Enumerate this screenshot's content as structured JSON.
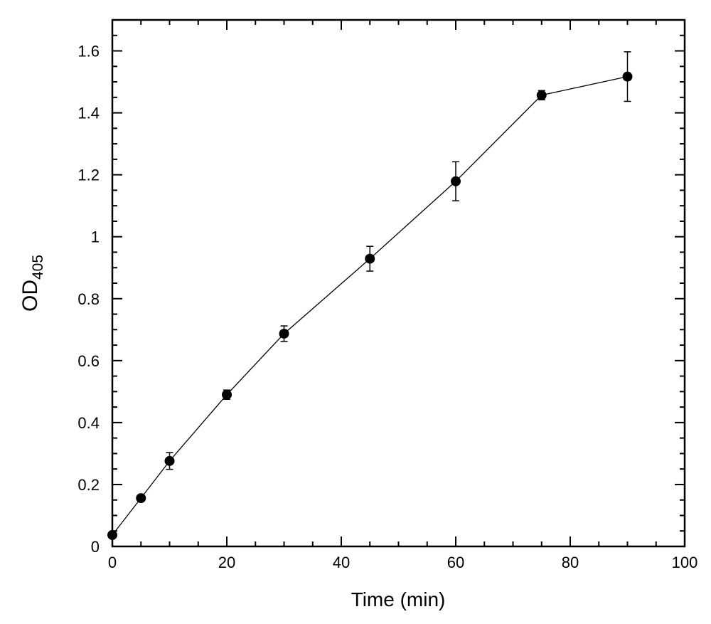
{
  "chart_data": {
    "type": "line",
    "title": "",
    "xlabel": "Time (min)",
    "ylabel_main": "OD",
    "ylabel_sub": "405",
    "xlim": [
      0,
      100
    ],
    "ylim": [
      0,
      1.7
    ],
    "xticks": [
      0,
      20,
      40,
      60,
      80,
      100
    ],
    "xtick_labels": [
      "0",
      "20",
      "40",
      "60",
      "80",
      "100"
    ],
    "yticks": [
      0,
      0.2,
      0.4,
      0.6,
      0.8,
      1,
      1.2,
      1.4,
      1.6
    ],
    "ytick_labels": [
      "0",
      "0.2",
      "0.4",
      "0.6",
      "0.8",
      "1",
      "1.2",
      "1.4",
      "1.6"
    ],
    "grid": false,
    "marker": "filled-circle",
    "color": "#000000",
    "series": [
      {
        "x": [
          0,
          5,
          10,
          20,
          30,
          45,
          60,
          75,
          90
        ],
        "y": [
          0.037,
          0.156,
          0.276,
          0.49,
          0.687,
          0.929,
          1.179,
          1.457,
          1.517
        ],
        "error": [
          0.01,
          0.01,
          0.027,
          0.015,
          0.025,
          0.04,
          0.063,
          0.015,
          0.08
        ]
      }
    ]
  }
}
